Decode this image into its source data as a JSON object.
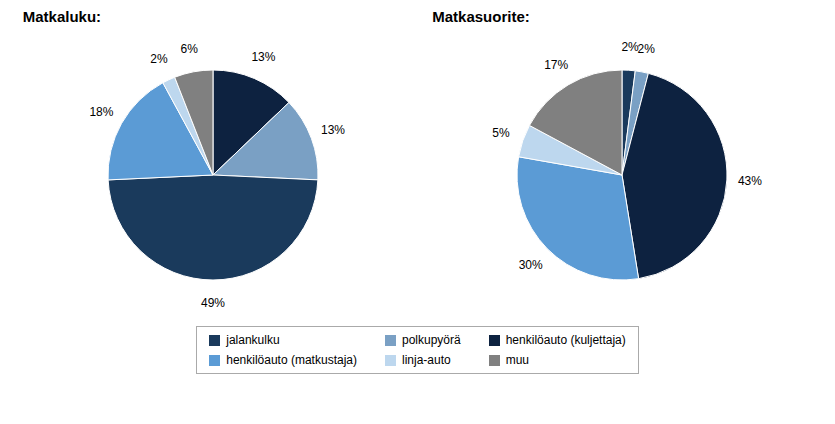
{
  "chart_data": [
    {
      "type": "pie",
      "title": "Matkaluku:",
      "categories": [
        "henkilöauto (kuljettaja)",
        "polkupyörä",
        "jalankulku",
        "henkilöauto (matkustaja)",
        "linja-auto",
        "muu"
      ],
      "values": [
        13,
        13,
        49,
        18,
        2,
        6
      ],
      "value_labels": [
        "13%",
        "13%",
        "49%",
        "18%",
        "2%",
        "6%"
      ],
      "colors": [
        "#0d2240",
        "#7aa0c4",
        "#1a3a5c",
        "#5b9bd5",
        "#bdd7ee",
        "#808080"
      ],
      "data_labels": true
    },
    {
      "type": "pie",
      "title": "Matkasuorite:",
      "categories": [
        "jalankulku",
        "polkupyörä",
        "henkilöauto (kuljettaja)",
        "henkilöauto (matkustaja)",
        "linja-auto",
        "muu"
      ],
      "values": [
        2,
        2,
        43,
        30,
        5,
        17
      ],
      "value_labels": [
        "2%",
        "2%",
        "43%",
        "30%",
        "5%",
        "17%"
      ],
      "colors": [
        "#1a3a5c",
        "#7aa0c4",
        "#0d2240",
        "#5b9bd5",
        "#bdd7ee",
        "#808080"
      ],
      "data_labels": true,
      "legend": "bottom"
    }
  ]
}
